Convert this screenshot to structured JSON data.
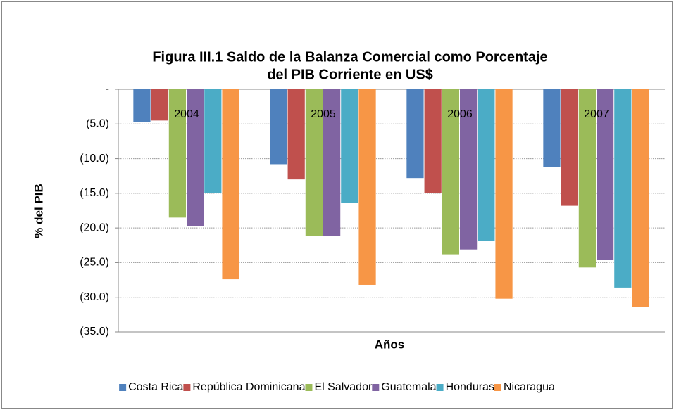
{
  "chart_data": {
    "type": "bar",
    "title": [
      "Figura III.1 Saldo de la Balanza Comercial como Porcentaje",
      "del PIB Corriente en US$"
    ],
    "x_label": "Años",
    "y_label": "% del PIB",
    "categories": [
      "2004",
      "2005",
      "2006",
      "2007"
    ],
    "series": [
      {
        "name": "Costa Rica",
        "color": "#4f81bd",
        "values": [
          -4.7,
          -10.8,
          -12.8,
          -11.2
        ]
      },
      {
        "name": "República Dominicana",
        "color": "#c0504d",
        "values": [
          -4.5,
          -13.0,
          -15.0,
          -16.8
        ]
      },
      {
        "name": "El Salvador",
        "color": "#9bbb59",
        "values": [
          -18.5,
          -21.2,
          -23.8,
          -25.7
        ]
      },
      {
        "name": "Guatemala",
        "color": "#8064a2",
        "values": [
          -19.7,
          -21.2,
          -23.1,
          -24.6
        ]
      },
      {
        "name": "Honduras",
        "color": "#4bacc6",
        "values": [
          -15.0,
          -16.4,
          -21.9,
          -28.6
        ]
      },
      {
        "name": "Nicaragua",
        "color": "#f79646",
        "values": [
          -27.4,
          -28.2,
          -30.2,
          -31.4
        ]
      }
    ],
    "ylim": [
      -35,
      0
    ],
    "yticks": [
      {
        "value": 0,
        "label": "-"
      },
      {
        "value": -5,
        "label": "(5.0)"
      },
      {
        "value": -10,
        "label": "(10.0)"
      },
      {
        "value": -15,
        "label": "(15.0)"
      },
      {
        "value": -20,
        "label": "(20.0)"
      },
      {
        "value": -25,
        "label": "(25.0)"
      },
      {
        "value": -30,
        "label": "(30.0)"
      },
      {
        "value": -35,
        "label": "(35.0)"
      }
    ],
    "grid": true,
    "legend": "bottom"
  }
}
